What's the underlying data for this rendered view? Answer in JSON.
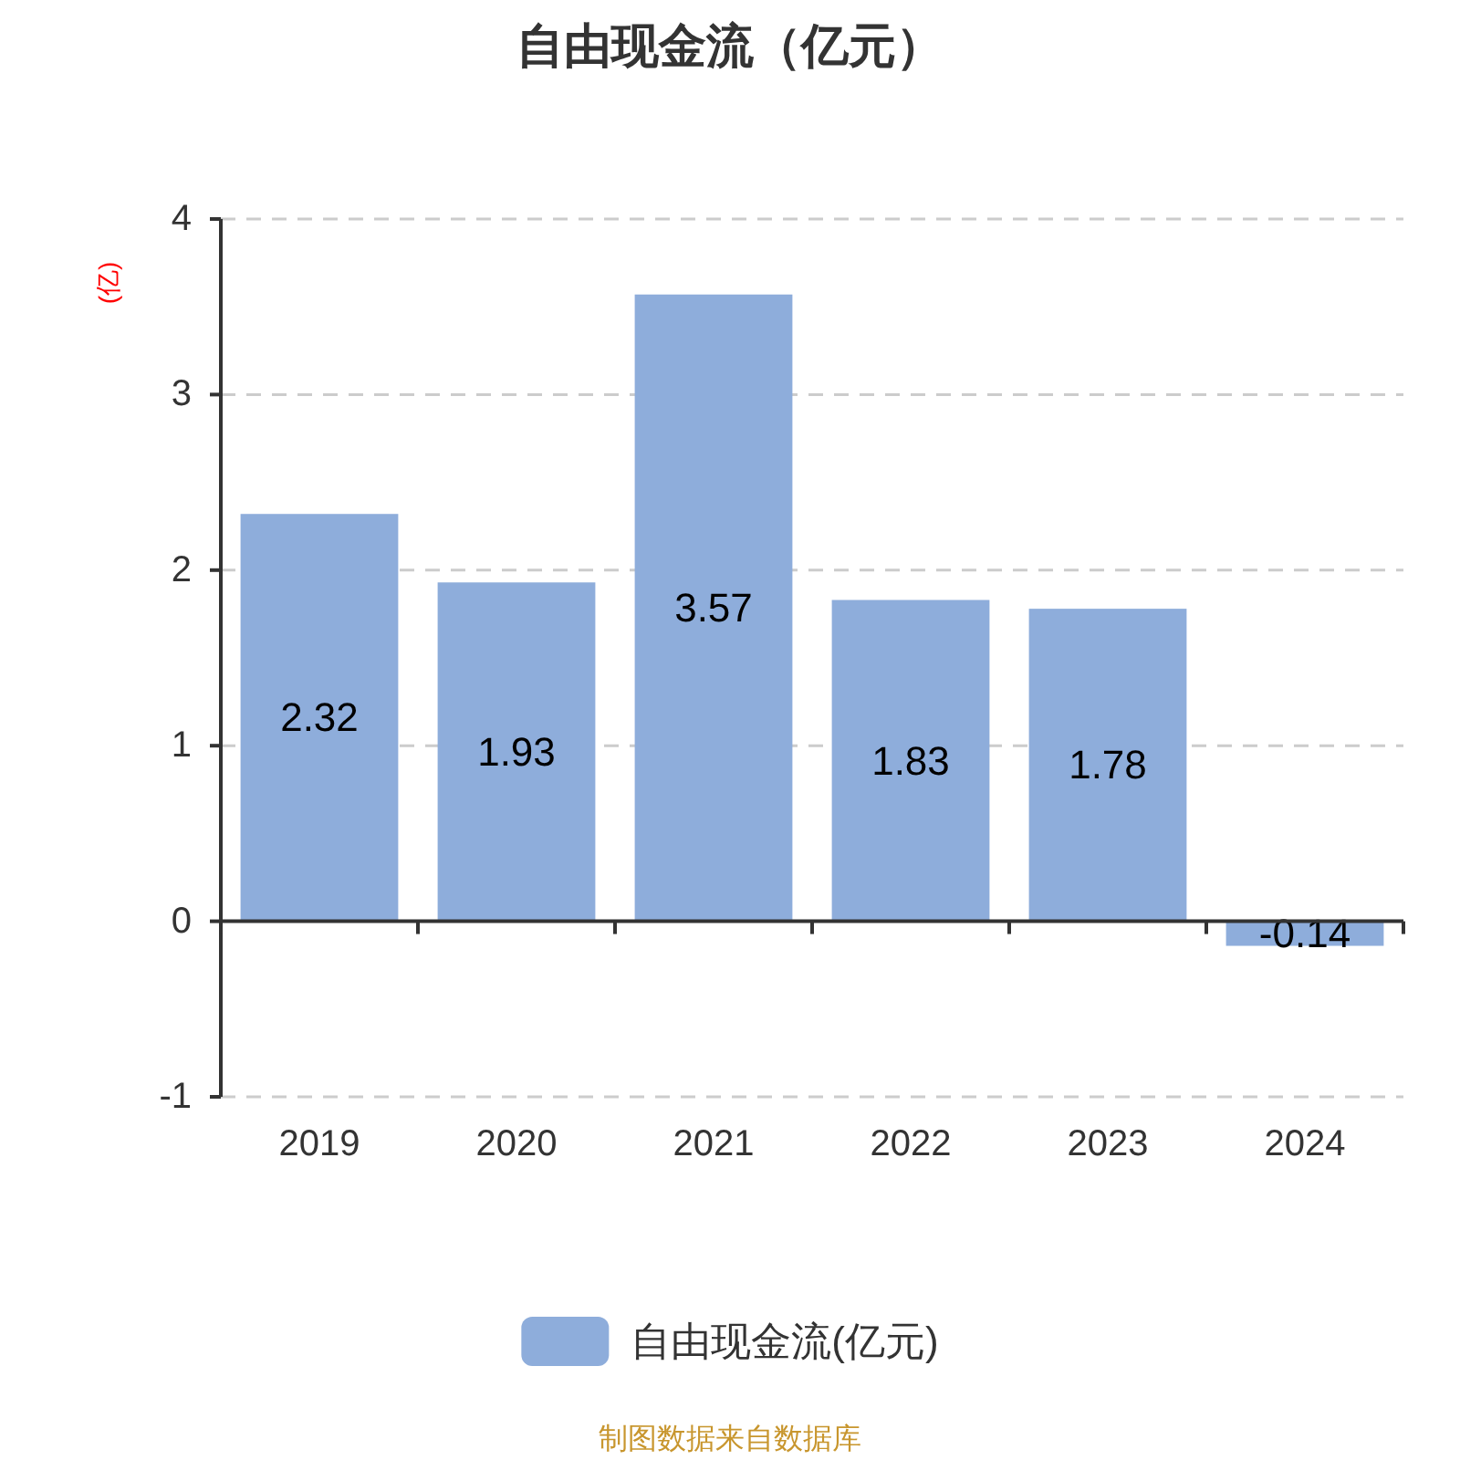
{
  "chart_data": {
    "type": "bar",
    "title": "自由现金流（亿元）",
    "ylabel": "(亿)",
    "categories": [
      "2019",
      "2020",
      "2021",
      "2022",
      "2023",
      "2024"
    ],
    "series": [
      {
        "name": "自由现金流(亿元)",
        "color": "#8eaddb",
        "values": [
          2.32,
          1.93,
          3.57,
          1.83,
          1.78,
          -0.14
        ]
      }
    ],
    "ylim": [
      -1,
      4
    ],
    "yticks": [
      -1,
      0,
      1,
      2,
      3,
      4
    ],
    "grid": "y",
    "legend": "bottom",
    "data_labels": true,
    "annotations": [
      "制图数据来自数据库"
    ]
  }
}
